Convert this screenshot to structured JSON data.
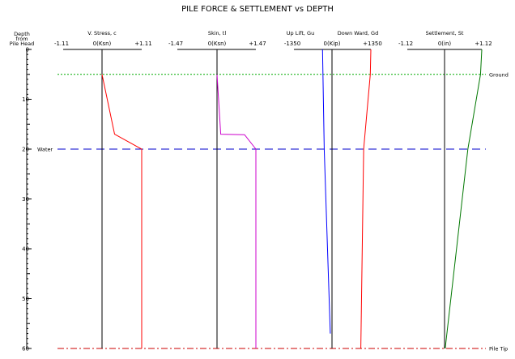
{
  "title": "PILE FORCE & SETTLEMENT vs DEPTH",
  "depth_axis_label": [
    "Depth",
    "from",
    "Pile Head"
  ],
  "chart_data": {
    "type": "line",
    "title": "PILE FORCE & SETTLEMENT vs DEPTH",
    "ylabel": "Depth from Pile Head",
    "ylim": [
      0,
      60
    ],
    "y_ticks": [
      0,
      10,
      20,
      30,
      40,
      50,
      60
    ],
    "y_inverted": true,
    "markers": [
      {
        "label": "Ground",
        "depth": 5,
        "color": "#00aa00",
        "style": "dotted"
      },
      {
        "label": "Water",
        "depth": 20,
        "color": "#0000cc",
        "style": "dashed"
      },
      {
        "label": "Pile Tip",
        "depth": 60,
        "color": "#cc0000",
        "style": "dashdot"
      }
    ],
    "panels": [
      {
        "header": "V. Stress, c",
        "tick_labels": [
          "-1.11",
          "0(Ksn)",
          "+1.11"
        ],
        "xlim": [
          -1.11,
          1.11
        ],
        "series": [
          {
            "color": "#ff0000",
            "x": [
              0,
              0.35,
              1.11,
              1.11
            ],
            "y": [
              5,
              17,
              20,
              60
            ]
          }
        ]
      },
      {
        "header": "Skin, tl",
        "tick_labels": [
          "-1.47",
          "0(Ksn)",
          "+1.47"
        ],
        "xlim": [
          -1.47,
          1.47
        ],
        "series": [
          {
            "color": "#cc00cc",
            "x": [
              0,
              0.14,
              1.04,
              1.47,
              1.47
            ],
            "y": [
              5,
              17,
              17.1,
              20,
              60
            ]
          }
        ]
      },
      {
        "header_left": "Up Lift, Gu",
        "header_right": "Down Ward, Gd",
        "tick_labels": [
          "-1350",
          "0(Kip)",
          "+1350"
        ],
        "xlim": [
          -1350,
          1350
        ],
        "series": [
          {
            "color": "#0000ff",
            "x": [
              -330,
              -270,
              -60
            ],
            "y": [
              0,
              20,
              57
            ]
          },
          {
            "color": "#ff0000",
            "x": [
              1350,
              1330,
              1100,
              1000
            ],
            "y": [
              0,
              5,
              20,
              60
            ]
          }
        ]
      },
      {
        "header": "Settlement, St",
        "tick_labels": [
          "-1.12",
          "0(in)",
          "+1.12"
        ],
        "xlim": [
          -1.12,
          1.12
        ],
        "series": [
          {
            "color": "#007700",
            "x": [
              1.12,
              1.08,
              0.7,
              0.02
            ],
            "y": [
              0,
              5,
              20,
              60
            ]
          }
        ]
      }
    ]
  }
}
